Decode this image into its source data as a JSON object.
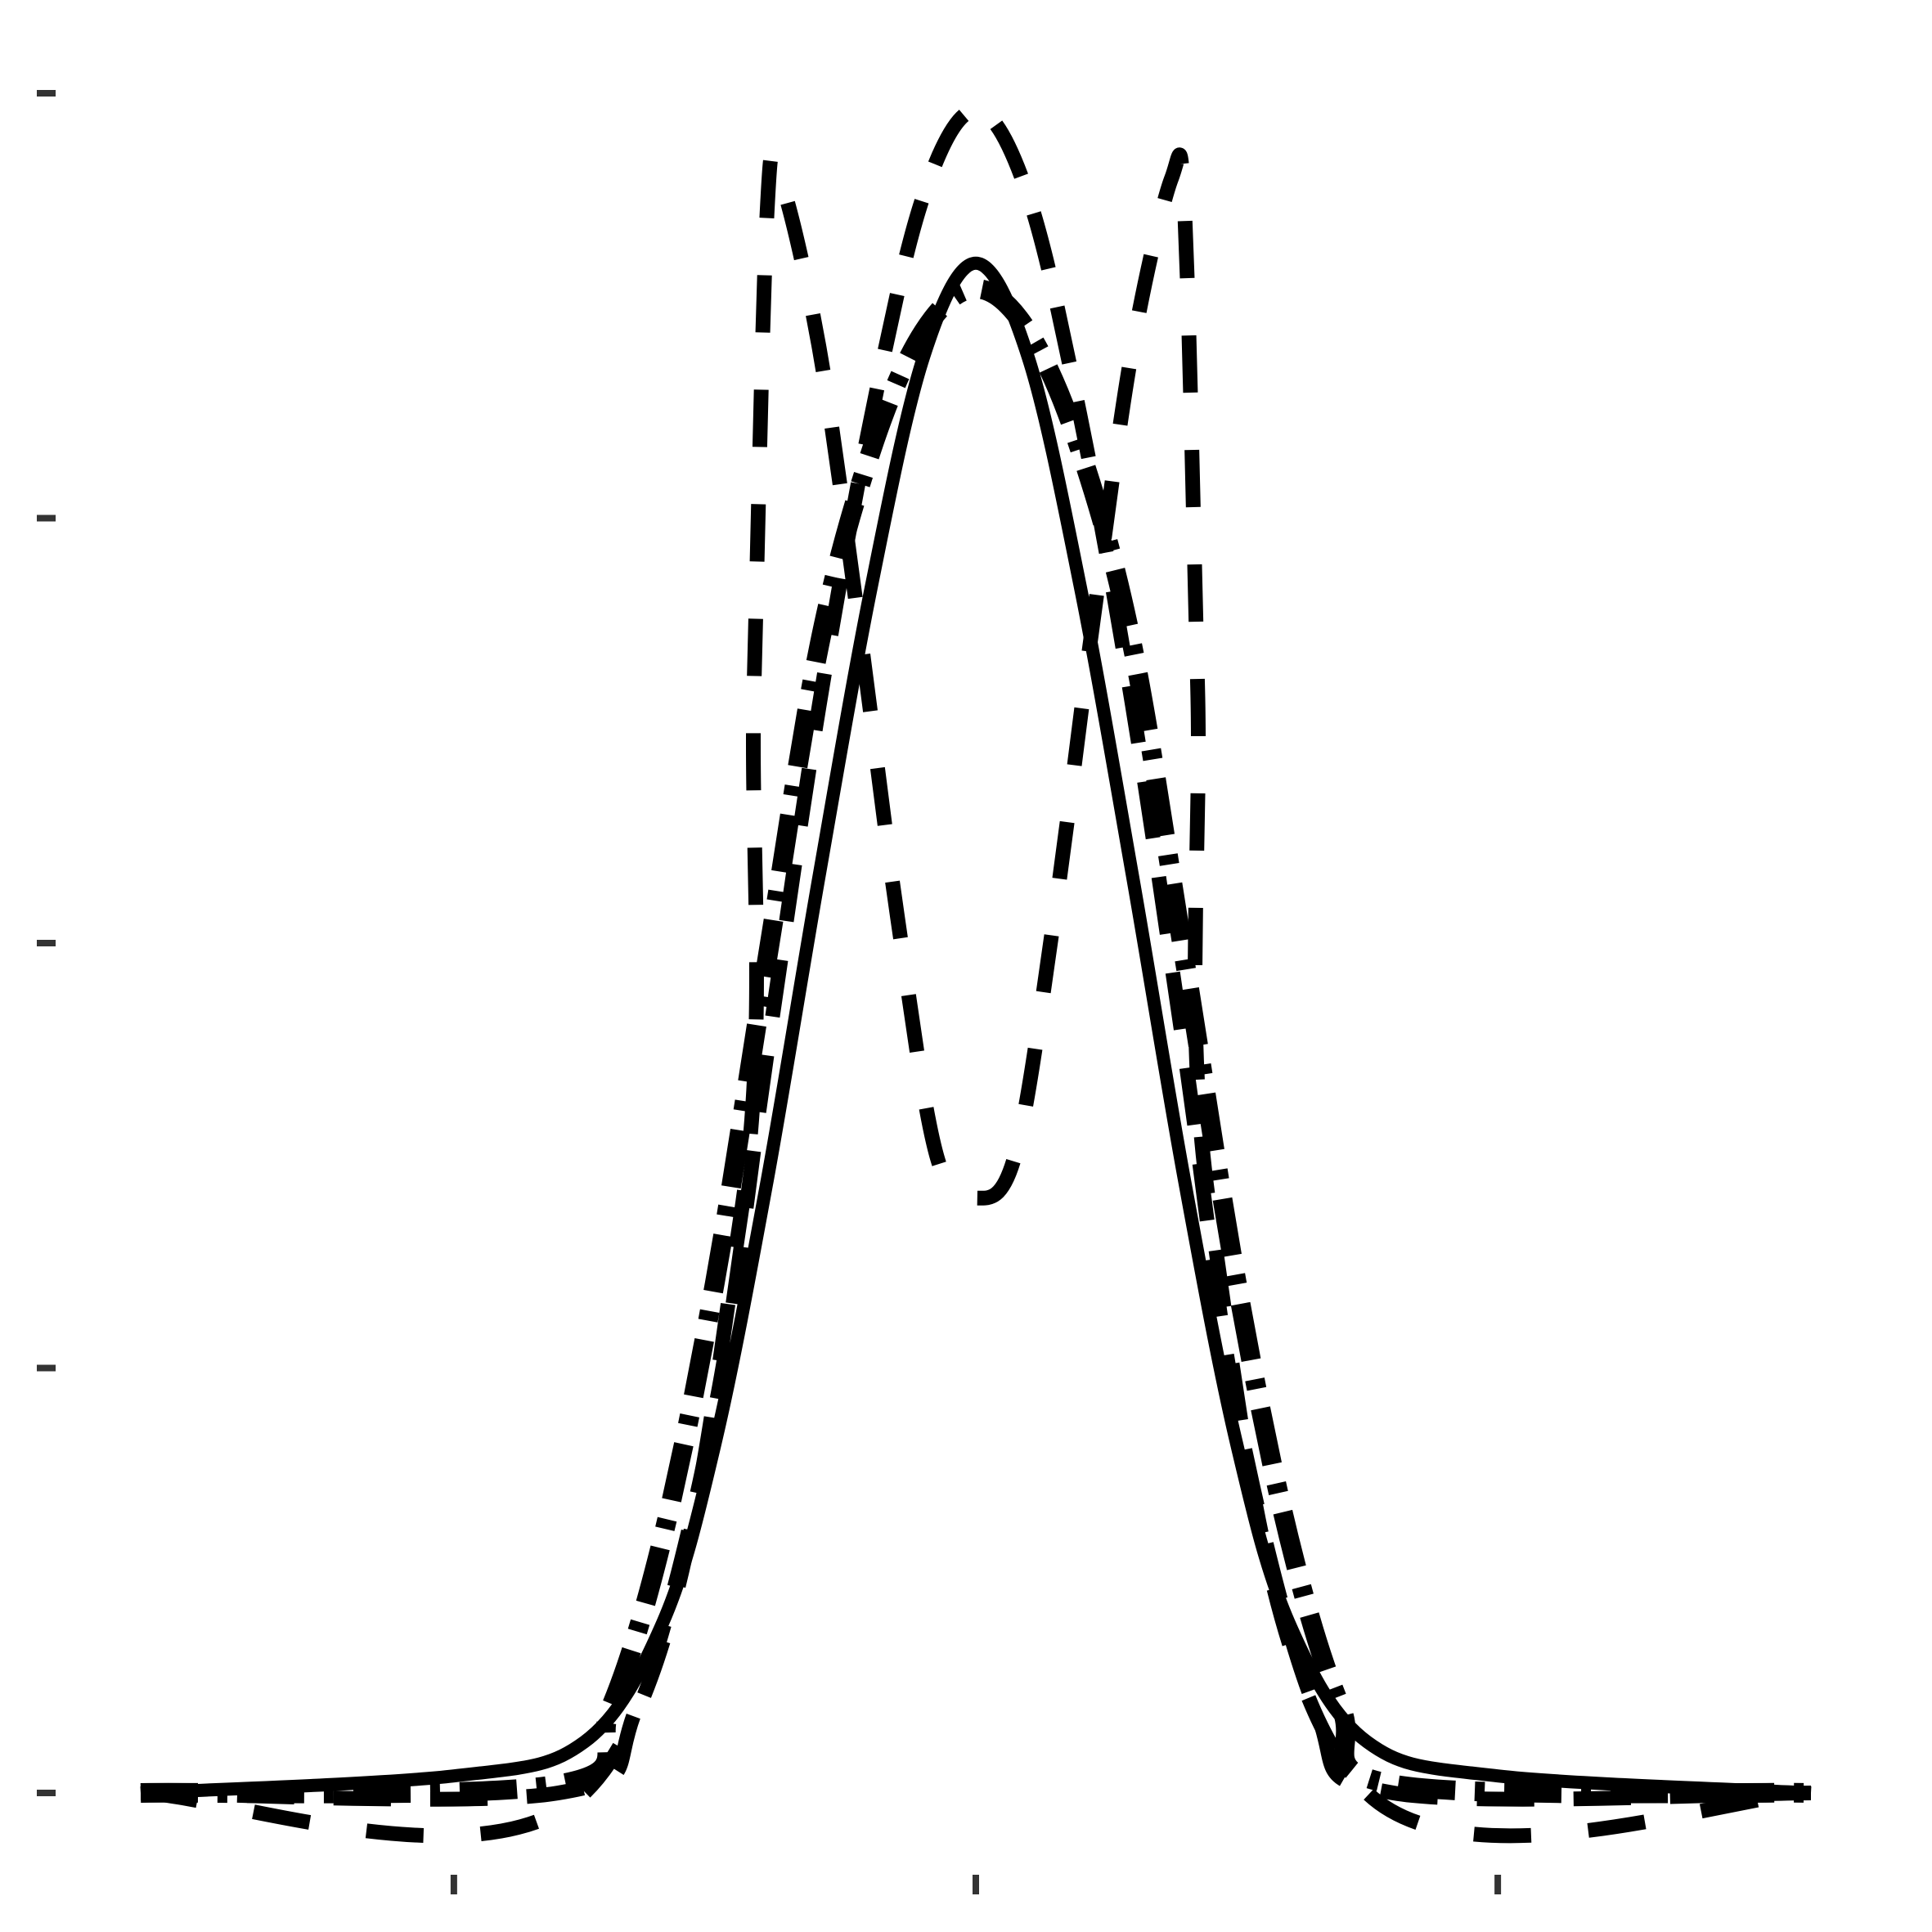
{
  "chart_data": {
    "type": "line",
    "title": "",
    "xlabel": "",
    "ylabel": "",
    "xlim": [
      -3.2,
      3.2
    ],
    "ylim": [
      0,
      2.0
    ],
    "xticks": [
      -2,
      0,
      2
    ],
    "yticks": [
      0,
      0.5,
      1.0,
      1.5,
      2.0
    ],
    "grid": false,
    "legend": null,
    "line_color": "#000000",
    "series": [
      {
        "style": "solid",
        "x": [
          -3.2,
          -2.0,
          -1.5,
          -1.2,
          -1.0,
          -0.8,
          -0.6,
          -0.4,
          -0.2,
          0.0,
          0.2,
          0.4,
          0.6,
          0.8,
          1.0,
          1.2,
          1.5,
          2.0,
          3.2
        ],
        "y": [
          0.0,
          0.02,
          0.06,
          0.2,
          0.41,
          0.72,
          1.08,
          1.42,
          1.69,
          1.8,
          1.69,
          1.42,
          1.08,
          0.72,
          0.41,
          0.2,
          0.06,
          0.02,
          0.0
        ]
      },
      {
        "style": "dashed",
        "x": [
          -3.2,
          -1.6,
          -1.3,
          -1.0,
          -0.8,
          -0.6,
          -0.4,
          -0.2,
          0.0,
          0.2,
          0.4,
          0.6,
          0.8,
          1.0,
          1.3,
          1.6,
          3.2
        ],
        "y": [
          0.0,
          0.0,
          0.1,
          0.45,
          0.87,
          1.28,
          1.62,
          1.88,
          1.98,
          1.88,
          1.62,
          1.28,
          0.87,
          0.45,
          0.1,
          0.0,
          0.0
        ]
      },
      {
        "style": "dotted",
        "x": [
          -3.2,
          -1.5,
          -0.9,
          -0.85,
          -0.8,
          -0.75,
          -0.6,
          -0.45,
          -0.3,
          -0.15,
          0.0,
          0.15,
          0.3,
          0.45,
          0.6,
          0.75,
          0.8,
          0.85,
          0.9,
          1.5,
          3.2
        ],
        "y": [
          0.0,
          0.0,
          0.68,
          1.3,
          1.86,
          1.9,
          1.7,
          1.38,
          1.03,
          0.75,
          0.7,
          0.75,
          1.03,
          1.38,
          1.7,
          1.9,
          1.86,
          1.3,
          0.68,
          0.0,
          0.0
        ]
      },
      {
        "style": "dash-dot",
        "x": [
          -3.2,
          -1.6,
          -1.4,
          -1.2,
          -1.0,
          -0.8,
          -0.6,
          -0.4,
          -0.2,
          0.0,
          0.2,
          0.4,
          0.6,
          0.8,
          1.0,
          1.2,
          1.4,
          1.6,
          3.2
        ],
        "y": [
          0.0,
          0.01,
          0.1,
          0.3,
          0.6,
          0.98,
          1.35,
          1.58,
          1.72,
          1.77,
          1.72,
          1.58,
          1.35,
          0.98,
          0.6,
          0.3,
          0.1,
          0.01,
          0.0
        ]
      }
    ]
  }
}
